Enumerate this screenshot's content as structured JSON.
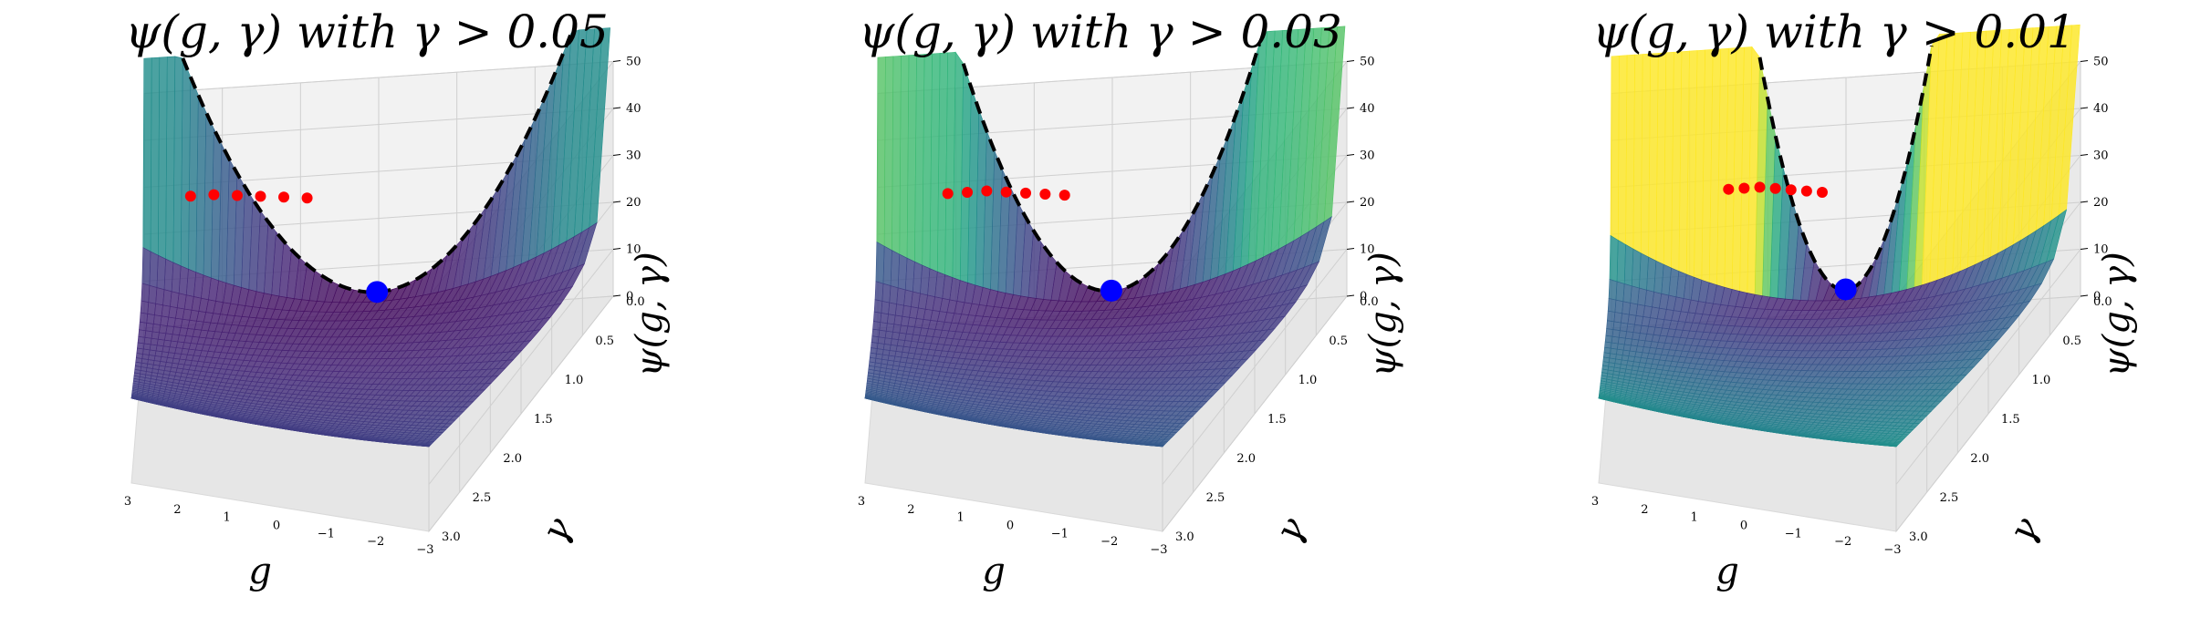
{
  "chart_data": [
    {
      "type": "surface3d",
      "title": "ψ(g, γ) with γ > 0.05",
      "xlabel": "g",
      "ylabel": "γ",
      "zlabel": "ψ(g, γ)",
      "x_ticks": [
        "3",
        "2",
        "1",
        "0",
        "−1",
        "−2",
        "−3"
      ],
      "y_ticks": [
        "0.0",
        "0.5",
        "1.0",
        "1.5",
        "2.0",
        "2.5",
        "3.0"
      ],
      "z_ticks": [
        "0",
        "10",
        "20",
        "30",
        "40",
        "50"
      ],
      "xlim": [
        -3,
        3
      ],
      "ylim": [
        0,
        3
      ],
      "zlim": [
        0,
        50
      ],
      "gamma_min": 0.05,
      "grid": true,
      "colormap": "viridis",
      "minimum_point": {
        "g": 0,
        "gamma": 0.05,
        "psi": 5,
        "color": "#0000ff"
      },
      "red_points": {
        "color": "#ff0000",
        "gamma": 0.05,
        "g": [
          0.9,
          1.2,
          1.5,
          1.8,
          2.1,
          2.4
        ],
        "psi": [
          26,
          26.5,
          27,
          27.5,
          28,
          28
        ]
      },
      "dashed_curve_color": "#000000",
      "surface_max_color": "#b5de2b"
    },
    {
      "type": "surface3d",
      "title": "ψ(g, γ) with γ > 0.03",
      "xlabel": "g",
      "ylabel": "γ",
      "zlabel": "ψ(g, γ)",
      "x_ticks": [
        "3",
        "2",
        "1",
        "0",
        "−1",
        "−2",
        "−3"
      ],
      "y_ticks": [
        "0.0",
        "0.5",
        "1.0",
        "1.5",
        "2.0",
        "2.5",
        "3.0"
      ],
      "z_ticks": [
        "0",
        "10",
        "20",
        "30",
        "40",
        "50"
      ],
      "xlim": [
        -3,
        3
      ],
      "ylim": [
        0,
        3
      ],
      "zlim": [
        0,
        50
      ],
      "gamma_min": 0.03,
      "grid": true,
      "colormap": "viridis",
      "minimum_point": {
        "g": 0,
        "gamma": 0.03,
        "psi": 5,
        "color": "#0000ff"
      },
      "red_points": {
        "color": "#ff0000",
        "gamma": 0.03,
        "g": [
          0.6,
          0.85,
          1.1,
          1.35,
          1.6,
          1.85,
          2.1
        ],
        "psi": [
          26,
          26.5,
          27,
          27.5,
          28,
          28,
          28
        ]
      },
      "dashed_curve_color": "#000000",
      "surface_max_color": "#26838f"
    },
    {
      "type": "surface3d",
      "title": "ψ(g, γ) with γ > 0.01",
      "xlabel": "g",
      "ylabel": "γ",
      "zlabel": "ψ(g, γ)",
      "x_ticks": [
        "3",
        "2",
        "1",
        "0",
        "−1",
        "−2",
        "−3"
      ],
      "y_ticks": [
        "0.0",
        "0.5",
        "1.0",
        "1.5",
        "2.0",
        "2.5",
        "3.0"
      ],
      "z_ticks": [
        "0",
        "10",
        "20",
        "30",
        "40",
        "50"
      ],
      "xlim": [
        -3,
        3
      ],
      "ylim": [
        0,
        3
      ],
      "zlim": [
        0,
        50
      ],
      "gamma_min": 0.01,
      "grid": true,
      "colormap": "viridis",
      "minimum_point": {
        "g": 0,
        "gamma": 0.01,
        "psi": 5,
        "color": "#0000ff"
      },
      "red_points": {
        "color": "#ff0000",
        "gamma": 0.01,
        "g": [
          0.3,
          0.5,
          0.7,
          0.9,
          1.1,
          1.3,
          1.5
        ],
        "psi": [
          26,
          26.5,
          27,
          27.5,
          28,
          28,
          28
        ]
      },
      "dashed_curve_color": "#000000",
      "surface_max_color": "#3f4a8a"
    }
  ]
}
